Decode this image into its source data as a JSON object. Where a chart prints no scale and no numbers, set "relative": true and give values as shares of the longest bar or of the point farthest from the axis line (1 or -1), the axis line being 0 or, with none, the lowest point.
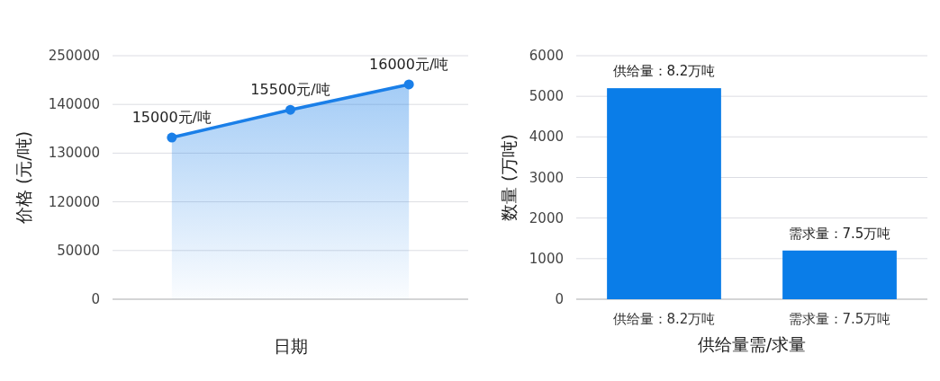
{
  "chart_data": [
    {
      "type": "area",
      "relative": true,
      "xlabel": "日期",
      "ylabel": "价格 (元/吨)",
      "categories": [
        null,
        null,
        null
      ],
      "series": [
        {
          "color": "#1a7fe8",
          "values": [
            0.753,
            0.882,
            1
          ]
        }
      ],
      "annotations": [
        {
          "text": "15000元/吨",
          "y": 0.753
        },
        {
          "text": "15500元/吨",
          "y": 0.882
        },
        {
          "text": "16000元/吨",
          "y": 1
        },
        "250000",
        "140000",
        "130000",
        "120000",
        "50000",
        "0"
      ],
      "grid": "y",
      "marker": "circle",
      "line_style": "solid"
    },
    {
      "type": "bar",
      "xlabel": "供给量需/求量",
      "ylabel": "数量 (万吨)",
      "categories": [
        "供给量：8.2万吨",
        "需求量：7.5万吨"
      ],
      "series": [
        {
          "color": "#0a7de8",
          "values": [
            5200,
            1200
          ]
        }
      ],
      "annotations": [
        {
          "text": "供给量：8.2万吨",
          "x": "供给量：8.2万吨",
          "y": 5200
        },
        {
          "text": "需求量：7.5万吨",
          "x": "需求量：7.5万吨",
          "y": 1200
        }
      ],
      "ylim": [
        0,
        6000
      ],
      "yticks": [
        0,
        1000,
        2000,
        3000,
        4000,
        5000,
        6000
      ],
      "grid": "y"
    }
  ]
}
